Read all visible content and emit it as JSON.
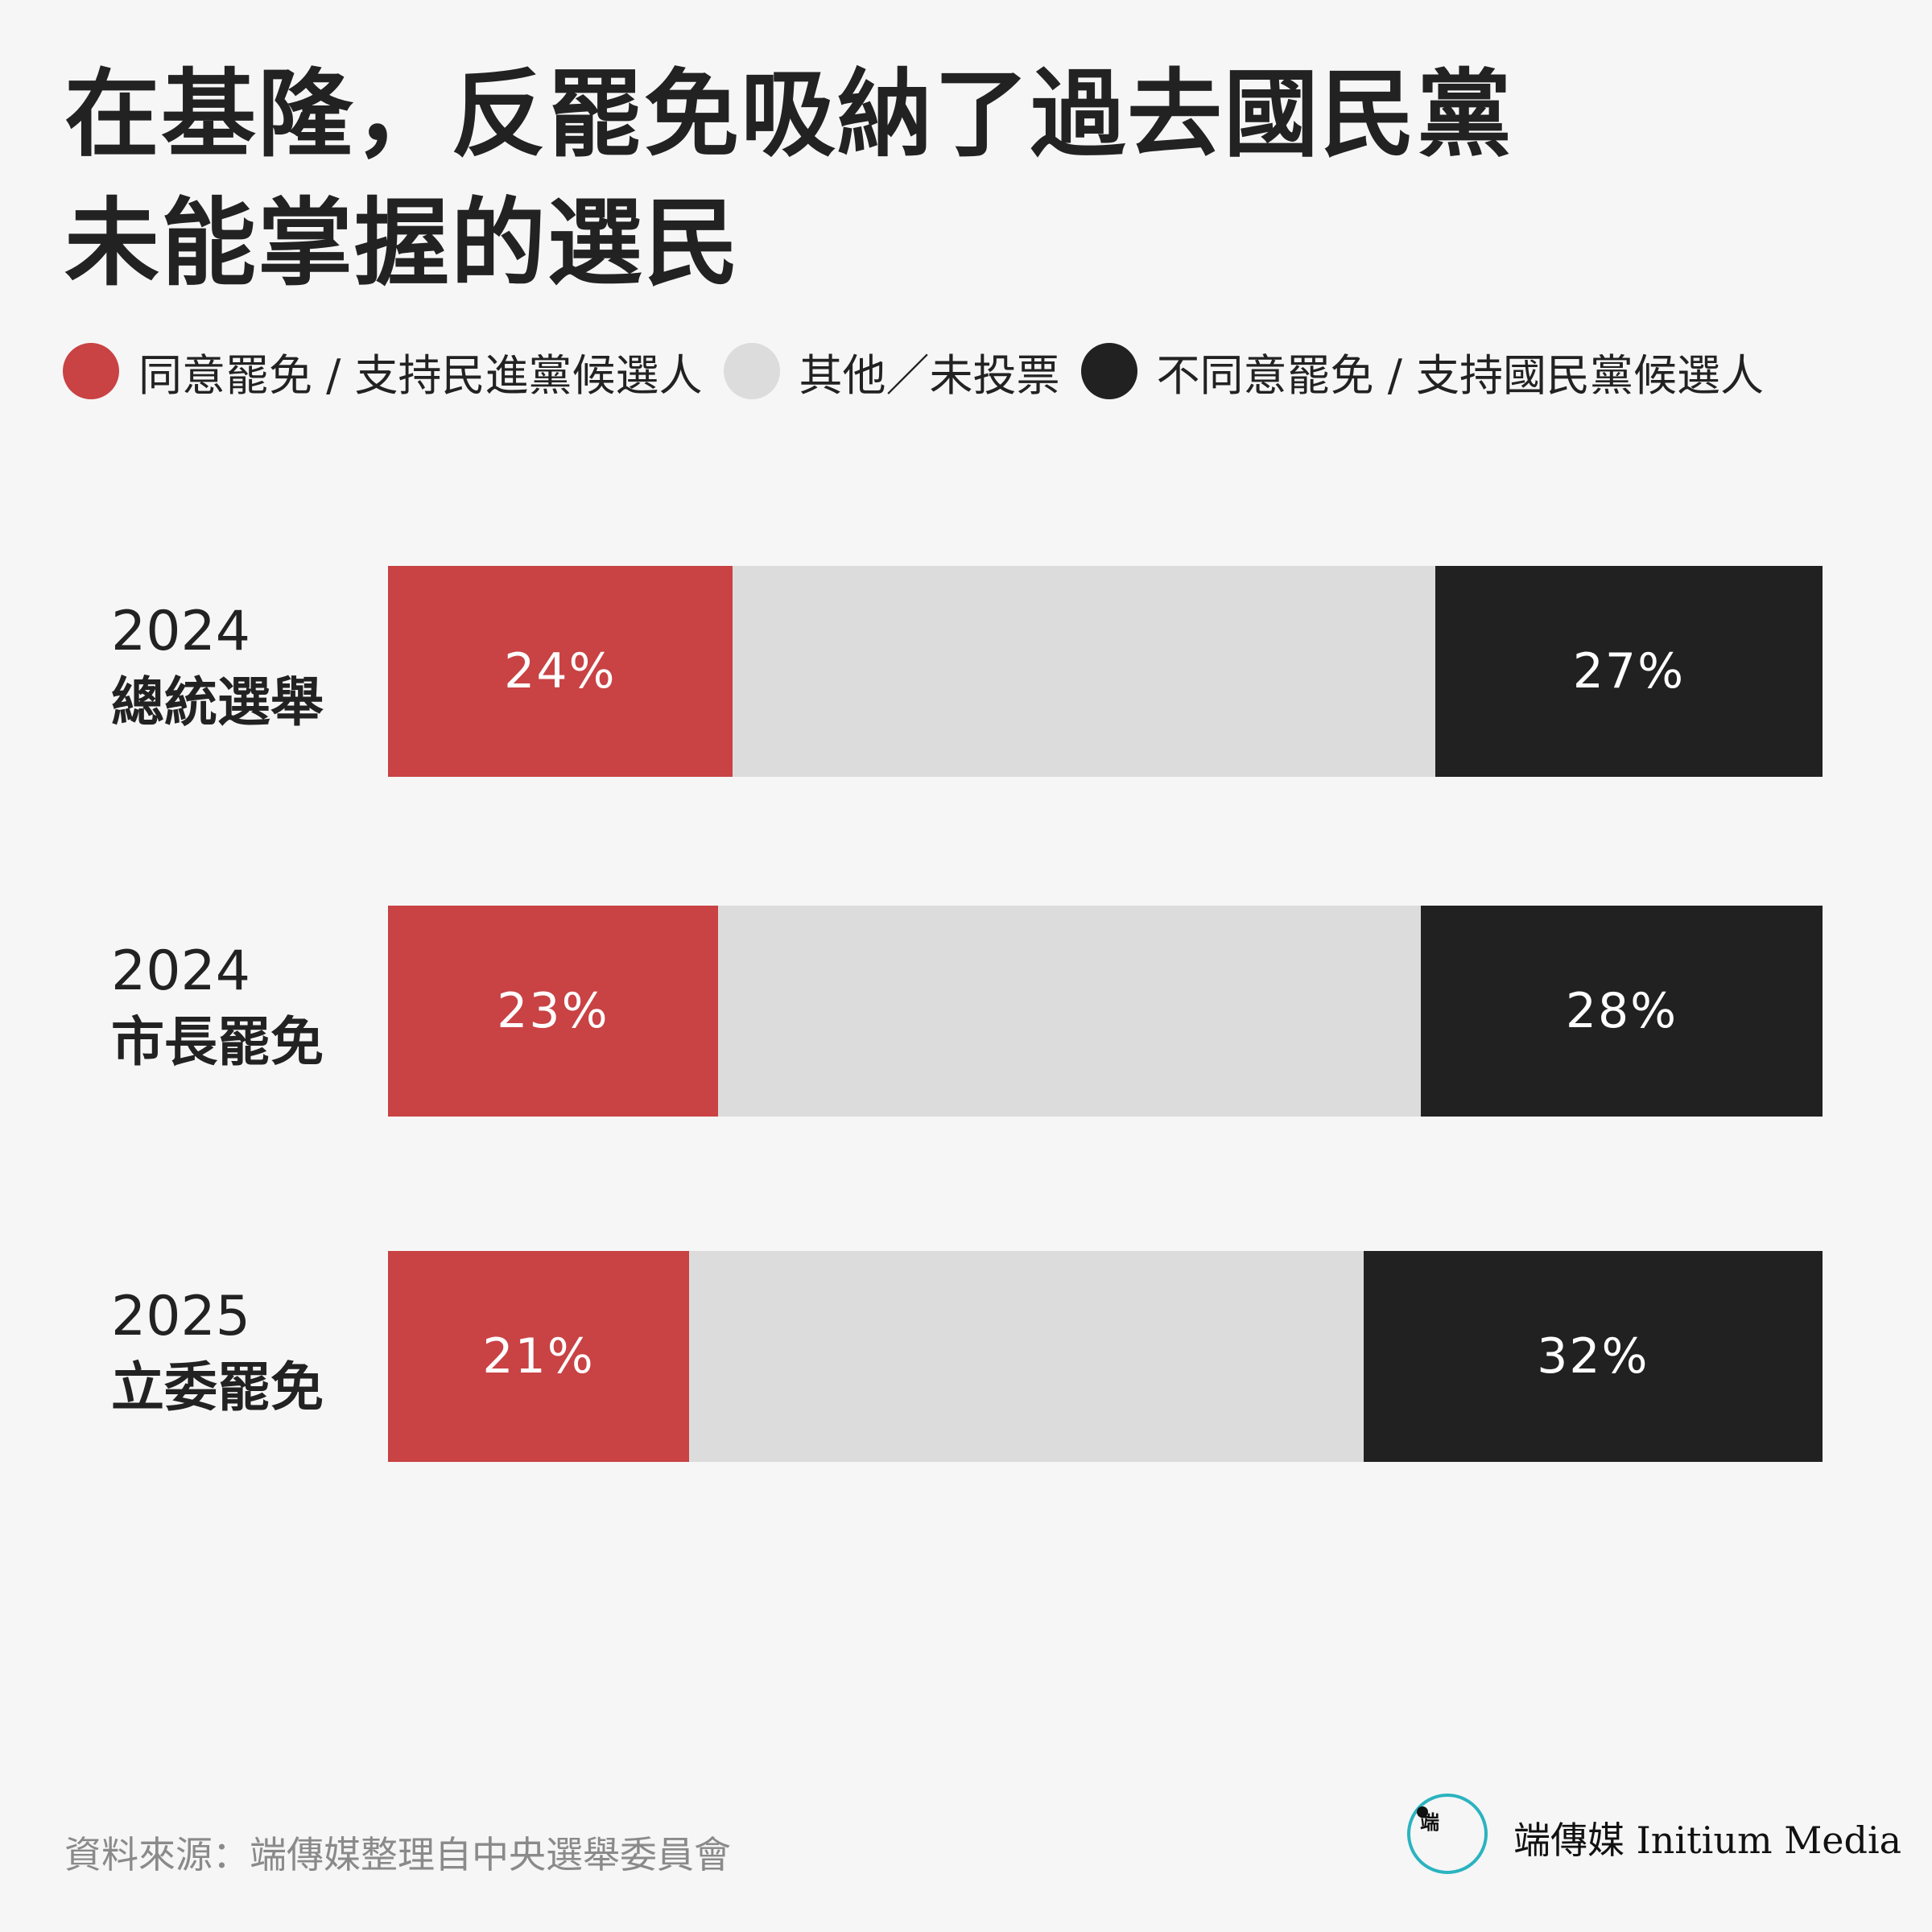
{
  "title_lines": [
    "在基隆，反罷免吸納了過去國民黨",
    "未能掌握的選民"
  ],
  "legend": [
    {
      "label": "同意罷免 / 支持民進黨候選人",
      "color": "#c94244"
    },
    {
      "label": "其他／未投票",
      "color": "#dcdcdc"
    },
    {
      "label": "不同意罷免 / 支持國民黨候選人",
      "color": "#212121"
    }
  ],
  "chart_data": {
    "type": "bar",
    "orientation": "horizontal",
    "stacked": true,
    "categories": [
      {
        "year": "2024",
        "name": "總統選舉"
      },
      {
        "year": "2024",
        "name": "市長罷免"
      },
      {
        "year": "2025",
        "name": "立委罷免"
      }
    ],
    "series": [
      {
        "name": "同意罷免 / 支持民進黨候選人",
        "color": "#c94244",
        "values": [
          24,
          23,
          21
        ],
        "labels": [
          "24%",
          "23%",
          "21%"
        ]
      },
      {
        "name": "其他／未投票",
        "color": "#dcdcdc",
        "values": [
          49,
          49,
          47
        ]
      },
      {
        "name": "不同意罷免 / 支持國民黨候選人",
        "color": "#212121",
        "values": [
          27,
          28,
          32
        ],
        "labels": [
          "27%",
          "28%",
          "32%"
        ]
      }
    ],
    "xlim": [
      0,
      100
    ],
    "grid": false,
    "legend_placement": "top"
  },
  "footer": {
    "source": "資料來源：端傳媒整理自中央選舉委員會"
  },
  "brand": {
    "logo_glyph": "端",
    "name": "端傳媒 Initium Media",
    "accent": "#2bb3c0"
  }
}
